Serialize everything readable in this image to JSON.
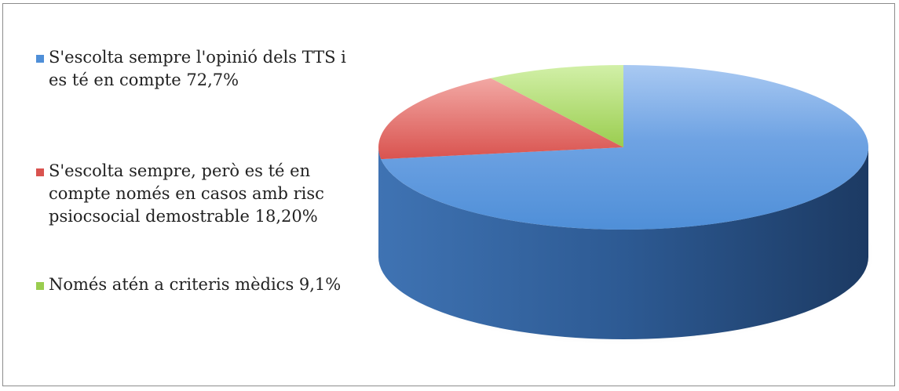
{
  "chart_data": {
    "type": "pie",
    "title": "",
    "slices": [
      {
        "label": "S'escolta sempre l'opinió dels TTS i es té en compte  72,7%",
        "value": 72.7,
        "color": "#4f8fd8"
      },
      {
        "label": "S'escolta sempre, però es té en compte només en casos amb risc psiocsocial demostrable 18,20%",
        "value": 18.2,
        "color": "#d9534f"
      },
      {
        "label": "Només atén a criteris mèdics 9,1%",
        "value": 9.1,
        "color": "#9acd4f"
      }
    ],
    "legend_position": "left",
    "style": "3d"
  }
}
